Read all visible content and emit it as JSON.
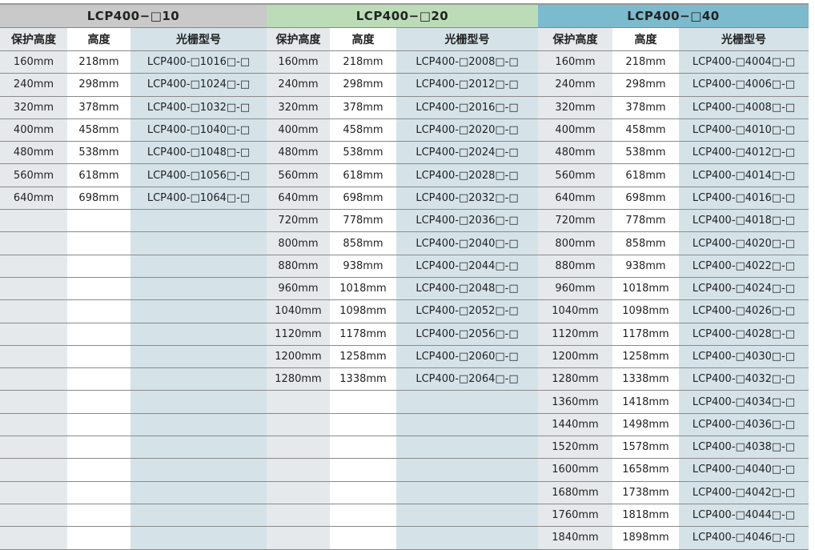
{
  "groups": [
    {
      "title": "LCP400−□10",
      "color": "#c9c9c9",
      "headers": [
        "保护高度",
        "高度",
        "光栅型号"
      ],
      "rows": [
        [
          "160mm",
          "218mm",
          "LCP400-□1016□-□"
        ],
        [
          "240mm",
          "298mm",
          "LCP400-□1024□-□"
        ],
        [
          "320mm",
          "378mm",
          "LCP400-□1032□-□"
        ],
        [
          "400mm",
          "458mm",
          "LCP400-□1040□-□"
        ],
        [
          "480mm",
          "538mm",
          "LCP400-□1048□-□"
        ],
        [
          "560mm",
          "618mm",
          "LCP400-□1056□-□"
        ],
        [
          "640mm",
          "698mm",
          "LCP400-□1064□-□"
        ]
      ]
    },
    {
      "title": "LCP400−□20",
      "color": "#bcdcb8",
      "headers": [
        "保护高度",
        "高度",
        "光栅型号"
      ],
      "rows": [
        [
          "160mm",
          "218mm",
          "LCP400-□2008□-□"
        ],
        [
          "240mm",
          "298mm",
          "LCP400-□2012□-□"
        ],
        [
          "320mm",
          "378mm",
          "LCP400-□2016□-□"
        ],
        [
          "400mm",
          "458mm",
          "LCP400-□2020□-□"
        ],
        [
          "480mm",
          "538mm",
          "LCP400-□2024□-□"
        ],
        [
          "560mm",
          "618mm",
          "LCP400-□2028□-□"
        ],
        [
          "640mm",
          "698mm",
          "LCP400-□2032□-□"
        ],
        [
          "720mm",
          "778mm",
          "LCP400-□2036□-□"
        ],
        [
          "800mm",
          "858mm",
          "LCP400-□2040□-□"
        ],
        [
          "880mm",
          "938mm",
          "LCP400-□2044□-□"
        ],
        [
          "960mm",
          "1018mm",
          "LCP400-□2048□-□"
        ],
        [
          "1040mm",
          "1098mm",
          "LCP400-□2052□-□"
        ],
        [
          "1120mm",
          "1178mm",
          "LCP400-□2056□-□"
        ],
        [
          "1200mm",
          "1258mm",
          "LCP400-□2060□-□"
        ],
        [
          "1280mm",
          "1338mm",
          "LCP400-□2064□-□"
        ]
      ]
    },
    {
      "title": "LCP400−□40",
      "color": "#7cbacd",
      "headers": [
        "保护高度",
        "高度",
        "光栅型号"
      ],
      "rows": [
        [
          "160mm",
          "218mm",
          "LCP400-□4004□-□"
        ],
        [
          "240mm",
          "298mm",
          "LCP400-□4006□-□"
        ],
        [
          "320mm",
          "378mm",
          "LCP400-□4008□-□"
        ],
        [
          "400mm",
          "458mm",
          "LCP400-□4010□-□"
        ],
        [
          "480mm",
          "538mm",
          "LCP400-□4012□-□"
        ],
        [
          "560mm",
          "618mm",
          "LCP400-□4014□-□"
        ],
        [
          "640mm",
          "698mm",
          "LCP400-□4016□-□"
        ],
        [
          "720mm",
          "778mm",
          "LCP400-□4018□-□"
        ],
        [
          "800mm",
          "858mm",
          "LCP400-□4020□-□"
        ],
        [
          "880mm",
          "938mm",
          "LCP400-□4022□-□"
        ],
        [
          "960mm",
          "1018mm",
          "LCP400-□4024□-□"
        ],
        [
          "1040mm",
          "1098mm",
          "LCP400-□4026□-□"
        ],
        [
          "1120mm",
          "1178mm",
          "LCP400-□4028□-□"
        ],
        [
          "1200mm",
          "1258mm",
          "LCP400-□4030□-□"
        ],
        [
          "1280mm",
          "1338mm",
          "LCP400-□4032□-□"
        ],
        [
          "1360mm",
          "1418mm",
          "LCP400-□4034□-□"
        ],
        [
          "1440mm",
          "1498mm",
          "LCP400-□4036□-□"
        ],
        [
          "1520mm",
          "1578mm",
          "LCP400-□4038□-□"
        ],
        [
          "1600mm",
          "1658mm",
          "LCP400-□4040□-□"
        ],
        [
          "1680mm",
          "1738mm",
          "LCP400-□4042□-□"
        ],
        [
          "1760mm",
          "1818mm",
          "LCP400-□4044□-□"
        ],
        [
          "1840mm",
          "1898mm",
          "LCP400-□4046□-□"
        ]
      ]
    }
  ]
}
